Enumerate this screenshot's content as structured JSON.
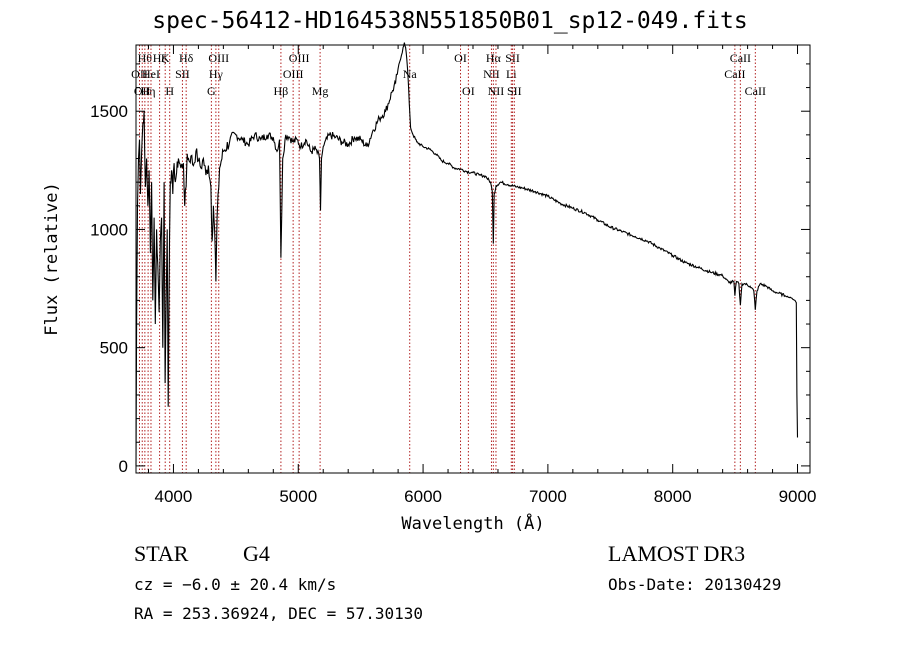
{
  "chart_data": {
    "type": "line",
    "title": "spec-56412-HD164538N551850B01_sp12-049.fits",
    "xlabel": "Wavelength (Å)",
    "ylabel": "Flux (relative)",
    "xlim": [
      3700,
      9100
    ],
    "ylim": [
      -30,
      1780
    ],
    "x_ticks": [
      4000,
      5000,
      6000,
      7000,
      8000,
      9000
    ],
    "y_ticks": [
      0,
      500,
      1000,
      1500
    ],
    "x_tick_labels": [
      "4000",
      "5000",
      "6000",
      "7000",
      "8000",
      "9000"
    ],
    "y_tick_labels": [
      "0",
      "500",
      "1000",
      "1500"
    ],
    "series": [
      {
        "name": "flux",
        "x": [
          3700,
          3705,
          3712,
          3720,
          3728,
          3735,
          3745,
          3755,
          3765,
          3775,
          3785,
          3795,
          3805,
          3815,
          3825,
          3835,
          3845,
          3855,
          3865,
          3875,
          3885,
          3895,
          3905,
          3915,
          3925,
          3933,
          3940,
          3950,
          3958,
          3968,
          3975,
          3985,
          3995,
          4005,
          4015,
          4025,
          4040,
          4060,
          4080,
          4090,
          4101,
          4110,
          4125,
          4140,
          4160,
          4180,
          4200,
          4220,
          4240,
          4260,
          4280,
          4300,
          4310,
          4320,
          4330,
          4340,
          4350,
          4370,
          4400,
          4450,
          4500,
          4550,
          4600,
          4650,
          4700,
          4750,
          4800,
          4830,
          4850,
          4861,
          4875,
          4900,
          4930,
          4960,
          4990,
          5020,
          5060,
          5100,
          5140,
          5170,
          5178,
          5186,
          5200,
          5250,
          5300,
          5350,
          5400,
          5450,
          5500,
          5550,
          5600,
          5650,
          5700,
          5750,
          5780,
          5800,
          5820,
          5840,
          5850,
          5860,
          5870,
          5880,
          5890,
          5900,
          5920,
          5950,
          6000,
          6050,
          6100,
          6150,
          6200,
          6250,
          6300,
          6350,
          6400,
          6450,
          6500,
          6540,
          6555,
          6563,
          6570,
          6585,
          6620,
          6680,
          6750,
          6800,
          6900,
          7000,
          7100,
          7200,
          7300,
          7400,
          7500,
          7600,
          7700,
          7800,
          7900,
          8000,
          8100,
          8200,
          8300,
          8400,
          8450,
          8490,
          8498,
          8510,
          8530,
          8542,
          8555,
          8580,
          8620,
          8650,
          8662,
          8675,
          8700,
          8750,
          8800,
          8850,
          8900,
          8950,
          8980,
          8990,
          8995,
          9000
        ],
        "values": [
          0,
          600,
          1100,
          1300,
          1380,
          1150,
          1320,
          1450,
          1500,
          1180,
          1300,
          1100,
          1250,
          900,
          1200,
          700,
          1050,
          600,
          1000,
          850,
          650,
          950,
          1050,
          500,
          1200,
          350,
          650,
          1000,
          250,
          950,
          1200,
          1250,
          1150,
          1280,
          1200,
          1240,
          1300,
          1260,
          1280,
          1100,
          1180,
          1320,
          1290,
          1310,
          1270,
          1330,
          1290,
          1260,
          1300,
          1230,
          1270,
          1180,
          950,
          1100,
          1000,
          780,
          1050,
          1260,
          1330,
          1370,
          1400,
          1380,
          1360,
          1400,
          1380,
          1400,
          1390,
          1330,
          1380,
          880,
          1300,
          1400,
          1390,
          1370,
          1380,
          1350,
          1380,
          1330,
          1340,
          1300,
          1080,
          1300,
          1350,
          1400,
          1390,
          1370,
          1360,
          1390,
          1380,
          1350,
          1420,
          1470,
          1500,
          1580,
          1620,
          1680,
          1720,
          1770,
          1790,
          1770,
          1720,
          1640,
          1530,
          1430,
          1400,
          1370,
          1350,
          1340,
          1320,
          1290,
          1280,
          1260,
          1255,
          1245,
          1240,
          1230,
          1225,
          1200,
          1160,
          940,
          1150,
          1185,
          1200,
          1190,
          1180,
          1175,
          1160,
          1140,
          1110,
          1090,
          1070,
          1040,
          1010,
          990,
          970,
          950,
          920,
          890,
          860,
          840,
          820,
          805,
          775,
          780,
          720,
          780,
          770,
          680,
          770,
          770,
          760,
          740,
          660,
          740,
          770,
          760,
          740,
          730,
          720,
          710,
          700,
          690,
          300,
          120
        ]
      }
    ],
    "line_markers": [
      {
        "wavelength": 3728,
        "label": "OII",
        "row": 2
      },
      {
        "wavelength": 3750,
        "label": "OII",
        "row": 3
      },
      {
        "wavelength": 3771,
        "label": "Hθ",
        "row": 1
      },
      {
        "wavelength": 3797,
        "label": "Hη",
        "row": 3
      },
      {
        "wavelength": 3820,
        "label": "HeI",
        "row": 2
      },
      {
        "wavelength": 3889,
        "label": "Hζ",
        "row": 1
      },
      {
        "wavelength": 3934,
        "label": "K",
        "row": 1
      },
      {
        "wavelength": 3970,
        "label": "H",
        "row": 3
      },
      {
        "wavelength": 4072,
        "label": "SII",
        "row": 2
      },
      {
        "wavelength": 4102,
        "label": "Hδ",
        "row": 1
      },
      {
        "wavelength": 4304,
        "label": "G",
        "row": 3
      },
      {
        "wavelength": 4340,
        "label": "Hγ",
        "row": 2
      },
      {
        "wavelength": 4363,
        "label": "OIII",
        "row": 1
      },
      {
        "wavelength": 4861,
        "label": "Hβ",
        "row": 3
      },
      {
        "wavelength": 4959,
        "label": "OIII",
        "row": 2
      },
      {
        "wavelength": 5007,
        "label": "OIII",
        "row": 1
      },
      {
        "wavelength": 5175,
        "label": "Mg",
        "row": 3
      },
      {
        "wavelength": 5893,
        "label": "Na",
        "row": 2
      },
      {
        "wavelength": 6300,
        "label": "OI",
        "row": 1
      },
      {
        "wavelength": 6363,
        "label": "OI",
        "row": 3
      },
      {
        "wavelength": 6548,
        "label": "NII",
        "row": 2
      },
      {
        "wavelength": 6563,
        "label": "Hα",
        "row": 1
      },
      {
        "wavelength": 6584,
        "label": "NII",
        "row": 3
      },
      {
        "wavelength": 6707,
        "label": "Li",
        "row": 2
      },
      {
        "wavelength": 6717,
        "label": "SII",
        "row": 1
      },
      {
        "wavelength": 6731,
        "label": "SII",
        "row": 3
      },
      {
        "wavelength": 8498,
        "label": "CaII",
        "row": 2
      },
      {
        "wavelength": 8542,
        "label": "CaII",
        "row": 1
      },
      {
        "wavelength": 8662,
        "label": "CaII",
        "row": 3
      }
    ],
    "marker_color": "#b22222"
  },
  "info": {
    "class": "STAR",
    "subclass": "G4",
    "survey": "LAMOST DR3",
    "cz": "cz = −6.0 ± 20.4 km/s",
    "obs_date": "Obs-Date: 20130429",
    "coords": "RA = 253.36924, DEC =  57.30130"
  }
}
